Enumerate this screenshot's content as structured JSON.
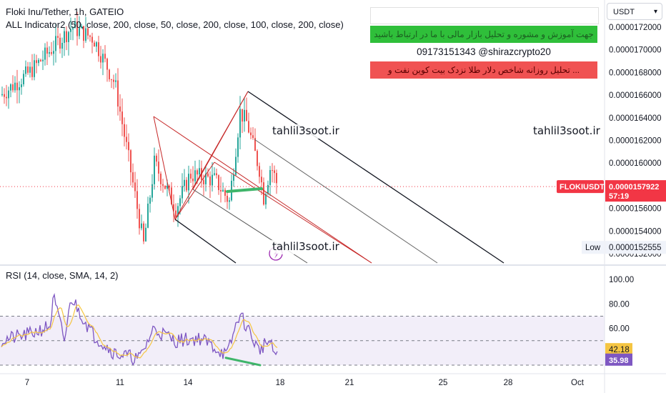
{
  "header": {
    "symbol_line": "Floki Inu/Tether, 1h, GATEIO",
    "indicator_line": "ALL Indicator2 (50, close, 200, close, 50, close, 200, close, 100, close, 200, close)",
    "rsi_line": "RSI (14, close, SMA, 14, 2)"
  },
  "currency_button": {
    "label": "USDT",
    "icon": "chevron-down-icon"
  },
  "promo": {
    "line1": "",
    "line2": "جهت آموزش و مشوره و تحلیل بازار مالی با ما در ارتباط باشید",
    "line3": "09173151343  @shirazcrypto20",
    "line4": "تحلیل روزانه شاخص دلار طلا نزدک بیت کوین نفت و ...",
    "green": "#2fbf3a",
    "red": "#f05252"
  },
  "watermarks": [
    "tahlil3soot.ir",
    "tahlil3soot.ir",
    "tahlil3soot.ir"
  ],
  "price_axis": {
    "ticks": [
      "0.0000172000",
      "0.0000170000",
      "0.0000168000",
      "0.0000166000",
      "0.0000164000",
      "0.0000162000",
      "0.0000160000",
      "0.0000156000",
      "0.0000154000",
      "0.0000152000"
    ],
    "last_price_symbol": "FLOKIUSDT",
    "last_price": "0.0000157922",
    "countdown": "57:19",
    "low_label": "Low",
    "low_value": "0.0000152555",
    "last_price_color": "#f23645"
  },
  "rsi_axis": {
    "ticks": [
      "100.00",
      "80.00",
      "60.00",
      "40.00"
    ],
    "sma_value": "42.18",
    "rsi_value": "35.98",
    "sma_color": "#f5c542",
    "rsi_color": "#7e57c2"
  },
  "time_axis": {
    "ticks": [
      "7",
      "11",
      "14",
      "18",
      "21",
      "25",
      "28",
      "Oct"
    ]
  },
  "chart_data": {
    "type": "line",
    "title": "Floki Inu/Tether, 1h, GATEIO",
    "xlabel": "",
    "ylabel": "",
    "ylim": [
      1.515e-05,
      1.73e-05
    ],
    "x": [
      "7",
      "11",
      "14",
      "18"
    ],
    "series": [
      {
        "name": "FLOKIUSDT",
        "values": [
          1.66e-05,
          1.56e-05,
          1.6e-05,
          1.57922e-05
        ]
      },
      {
        "name": "RSI",
        "values": [
          60,
          38,
          50,
          35.98
        ]
      }
    ],
    "rsi_ylim": [
      30,
      100
    ],
    "last_price": 1.57922e-05,
    "low": 1.52555e-05
  }
}
